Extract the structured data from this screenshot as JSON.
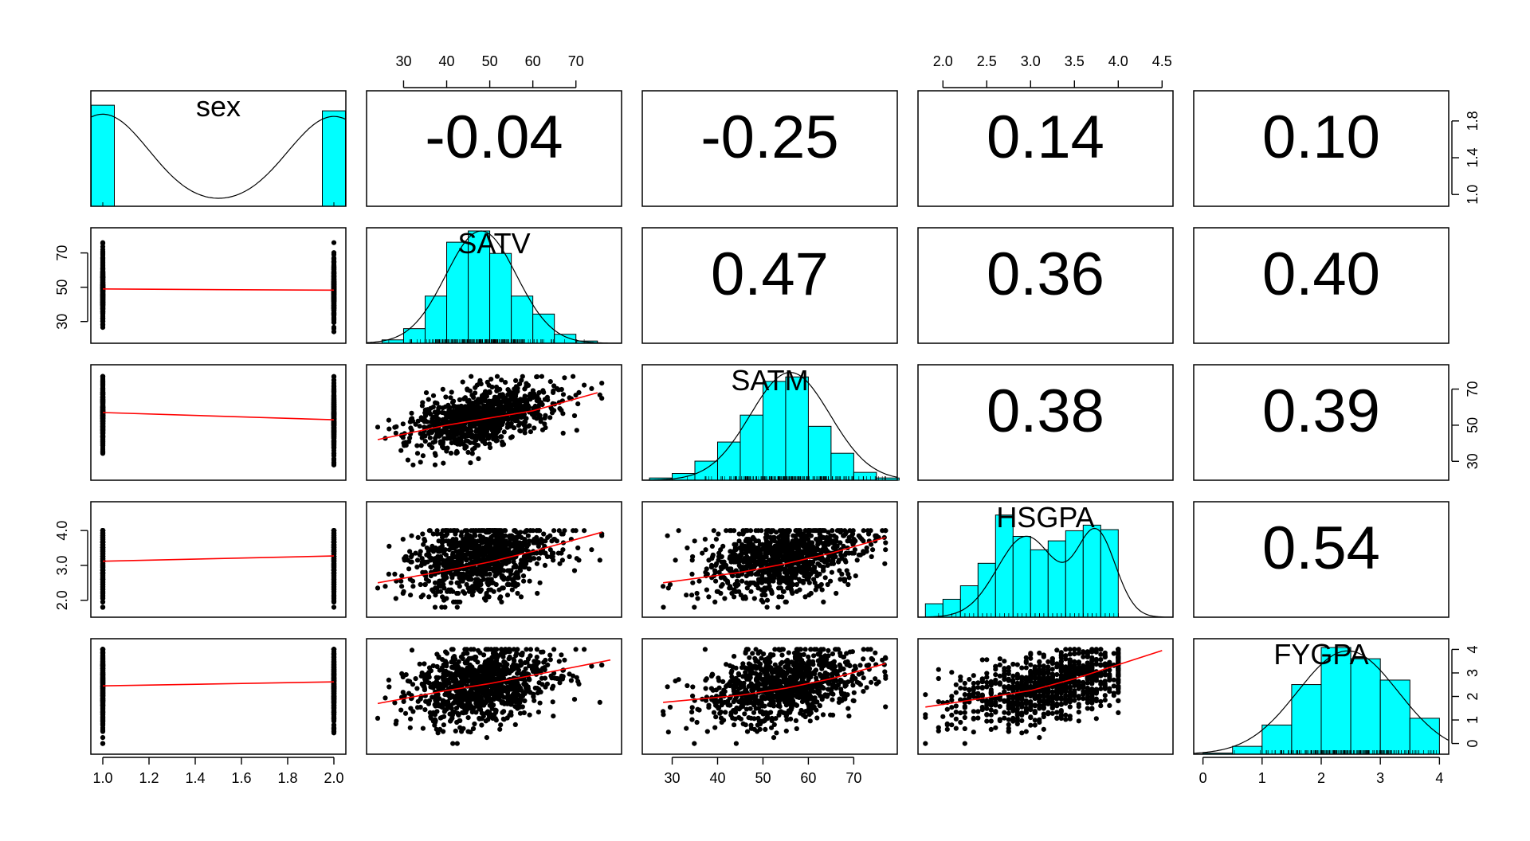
{
  "chart_data": {
    "type": "scatter-matrix",
    "variables": [
      "sex",
      "SATV",
      "SATM",
      "HSGPA",
      "FYGPA"
    ],
    "variable_ranges": {
      "sex": [
        0.95,
        2.05
      ],
      "SATV": [
        21.5,
        80.5
      ],
      "SATM": [
        23.5,
        79.5
      ],
      "HSGPA": [
        1.72,
        4.62
      ],
      "FYGPA": [
        -0.15,
        4.15
      ]
    },
    "axis_ticks": {
      "sex": [
        "1.0",
        "1.2",
        "1.4",
        "1.6",
        "1.8",
        "2.0"
      ],
      "SATV": [
        "30",
        "40",
        "50",
        "60",
        "70"
      ],
      "SATM": [
        "30",
        "40",
        "50",
        "60",
        "70"
      ],
      "HSGPA": [
        "2.0",
        "2.5",
        "3.0",
        "3.5",
        "4.0",
        "4.5"
      ],
      "FYGPA": [
        "0",
        "1",
        "2",
        "3",
        "4"
      ]
    },
    "left_axis_ticks": {
      "SATV": [
        "30",
        "50",
        "70"
      ],
      "HSGPA": [
        "2.0",
        "3.0",
        "4.0"
      ]
    },
    "right_axis_ticks": {
      "sex": [
        "1.0",
        "1.4",
        "1.8"
      ],
      "SATM": [
        "30",
        "50",
        "70"
      ],
      "FYGPA": [
        "0",
        "1",
        "2",
        "3",
        "4"
      ]
    },
    "correlations": [
      {
        "row": "sex",
        "col": "SATV",
        "label": "-0.04"
      },
      {
        "row": "sex",
        "col": "SATM",
        "label": "-0.25"
      },
      {
        "row": "sex",
        "col": "HSGPA",
        "label": "0.14"
      },
      {
        "row": "sex",
        "col": "FYGPA",
        "label": "0.10"
      },
      {
        "row": "SATV",
        "col": "SATM",
        "label": "0.47"
      },
      {
        "row": "SATV",
        "col": "HSGPA",
        "label": "0.36"
      },
      {
        "row": "SATV",
        "col": "FYGPA",
        "label": "0.40"
      },
      {
        "row": "SATM",
        "col": "HSGPA",
        "label": "0.38"
      },
      {
        "row": "SATM",
        "col": "FYGPA",
        "label": "0.39"
      },
      {
        "row": "HSGPA",
        "col": "FYGPA",
        "label": "0.54"
      }
    ],
    "histograms": {
      "sex": {
        "breaks": [
          0.95,
          1.05,
          1.95,
          2.05
        ],
        "heights": [
          0.9,
          0,
          0.85
        ]
      },
      "SATV": {
        "breaks": [
          25,
          30,
          35,
          40,
          45,
          50,
          55,
          60,
          65,
          70,
          75
        ],
        "heights": [
          0.03,
          0.13,
          0.42,
          0.9,
          1.0,
          0.8,
          0.42,
          0.26,
          0.08,
          0.02
        ]
      },
      "SATM": {
        "breaks": [
          25,
          30,
          35,
          40,
          45,
          50,
          55,
          60,
          65,
          70,
          75,
          80
        ],
        "heights": [
          0.02,
          0.06,
          0.17,
          0.34,
          0.58,
          0.88,
          0.92,
          0.48,
          0.24,
          0.07,
          0.02
        ]
      },
      "HSGPA": {
        "breaks": [
          1.8,
          2.0,
          2.2,
          2.4,
          2.6,
          2.8,
          3.0,
          3.2,
          3.4,
          3.6,
          3.8,
          4.0
        ],
        "heights": [
          0.12,
          0.16,
          0.28,
          0.48,
          0.91,
          0.72,
          0.6,
          0.68,
          0.77,
          0.82,
          0.78
        ]
      },
      "FYGPA": {
        "breaks": [
          0,
          0.5,
          1.0,
          1.5,
          2.0,
          2.5,
          3.0,
          3.5,
          4.0
        ],
        "heights": [
          0.01,
          0.07,
          0.26,
          0.62,
          0.95,
          0.85,
          0.66,
          0.32
        ]
      }
    },
    "density_curves": {
      "sex": {
        "type": "bimodal",
        "modes": [
          1.0,
          2.0
        ],
        "sd": 0.2,
        "left_level": 0.82,
        "right_level": 0.8
      },
      "SATV": {
        "type": "normal",
        "mean": 48,
        "sd": 8.2,
        "peak": 1.0
      },
      "SATM": {
        "type": "normal",
        "mean": 56,
        "sd": 8.8,
        "peak": 0.96
      },
      "HSGPA": {
        "type": "mixture",
        "components": [
          {
            "mean": 2.95,
            "sd": 0.33,
            "weight": 0.72
          },
          {
            "mean": 3.75,
            "sd": 0.22,
            "weight": 0.75
          }
        ]
      },
      "FYGPA": {
        "type": "normal",
        "mean": 2.45,
        "sd": 0.85,
        "peak": 0.92
      }
    },
    "smoothers": {
      "SATV|sex": [
        [
          1,
          49
        ],
        [
          1.5,
          48.6
        ],
        [
          2,
          48.3
        ]
      ],
      "SATM|sex": [
        [
          1,
          57
        ],
        [
          2,
          53
        ]
      ],
      "SATM|SATV": [
        [
          24,
          42
        ],
        [
          40,
          50
        ],
        [
          50,
          54
        ],
        [
          60,
          58
        ],
        [
          75,
          68
        ]
      ],
      "HSGPA|sex": [
        [
          1,
          3.12
        ],
        [
          2,
          3.27
        ]
      ],
      "HSGPA|SATV": [
        [
          24,
          2.5
        ],
        [
          40,
          2.85
        ],
        [
          50,
          3.1
        ],
        [
          60,
          3.4
        ],
        [
          76,
          3.95
        ]
      ],
      "HSGPA|SATM": [
        [
          28,
          2.5
        ],
        [
          45,
          2.8
        ],
        [
          55,
          3.05
        ],
        [
          65,
          3.35
        ],
        [
          77,
          3.8
        ]
      ],
      "FYGPA|sex": [
        [
          1,
          2.45
        ],
        [
          2,
          2.62
        ]
      ],
      "FYGPA|SATV": [
        [
          24,
          1.7
        ],
        [
          40,
          2.25
        ],
        [
          50,
          2.55
        ],
        [
          60,
          2.9
        ],
        [
          78,
          3.55
        ]
      ],
      "FYGPA|SATM": [
        [
          28,
          1.75
        ],
        [
          45,
          2.05
        ],
        [
          55,
          2.35
        ],
        [
          65,
          2.75
        ],
        [
          77,
          3.4
        ]
      ],
      "FYGPA|HSGPA": [
        [
          1.8,
          1.55
        ],
        [
          2.5,
          1.95
        ],
        [
          3.0,
          2.25
        ],
        [
          3.5,
          2.75
        ],
        [
          4.0,
          3.35
        ],
        [
          4.5,
          3.95
        ]
      ]
    },
    "point_sample_size": 1000,
    "colors": {
      "bars": "#00ffff",
      "smoother": "#ff0000",
      "points": "#000000",
      "frame": "#000000",
      "background": "#ffffff"
    }
  }
}
